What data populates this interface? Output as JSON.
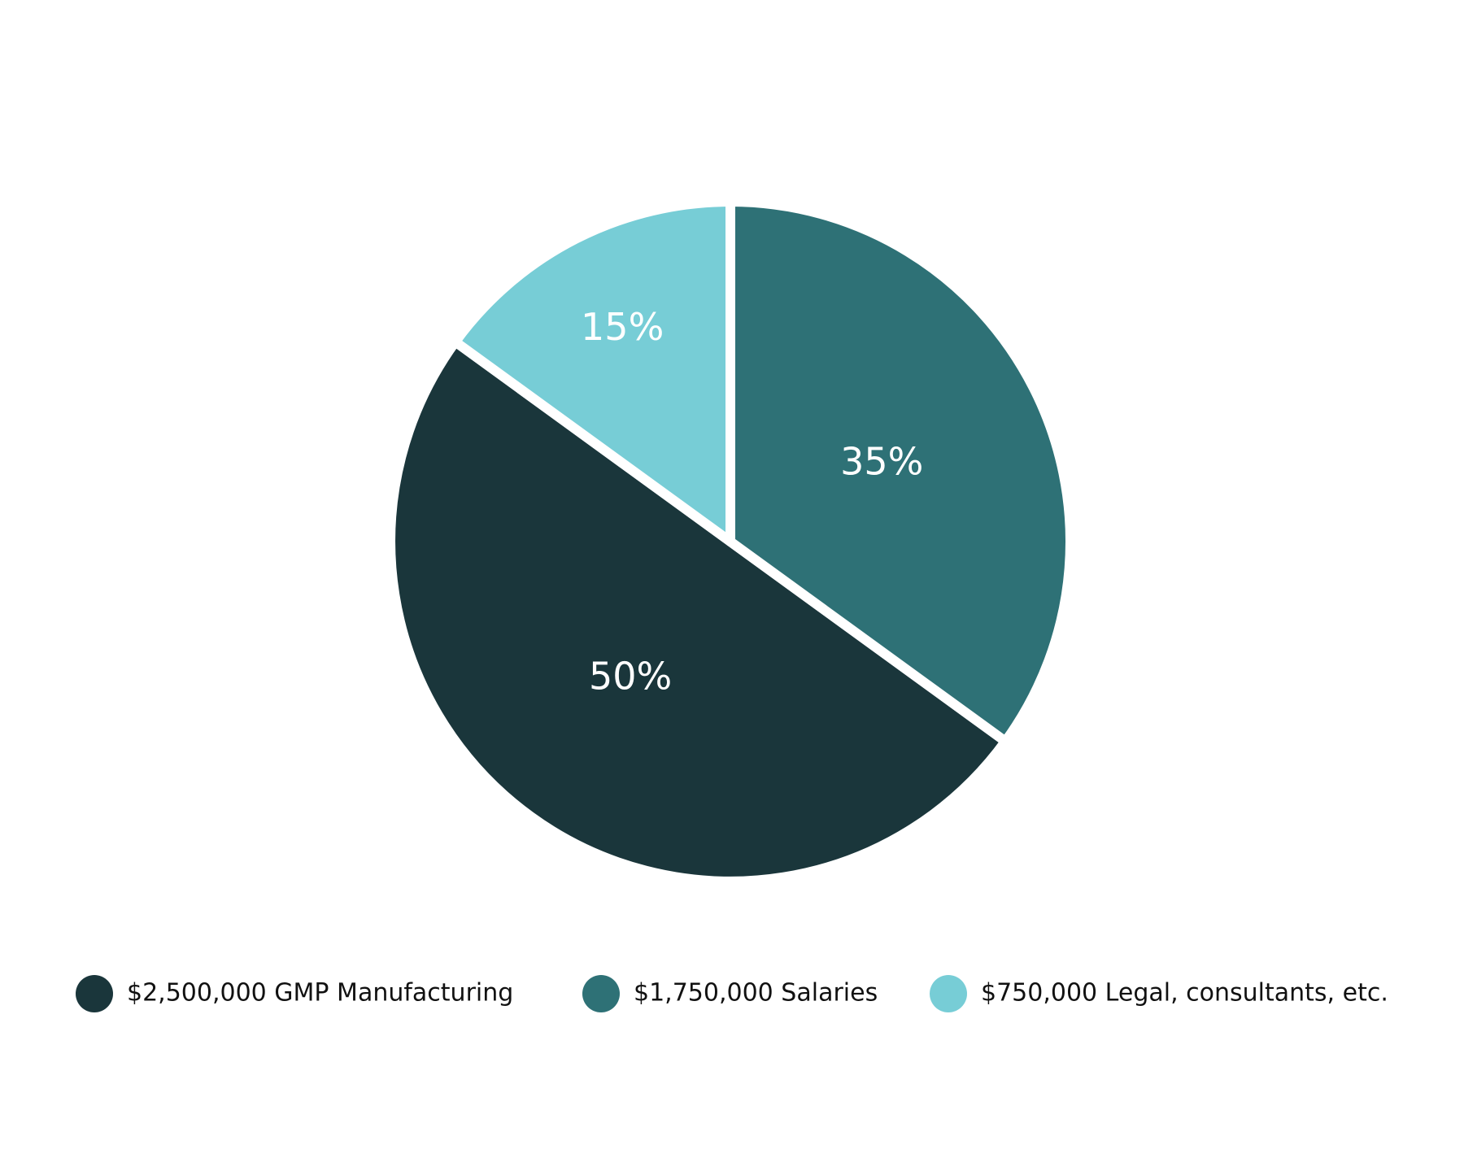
{
  "chart_data": {
    "type": "pie",
    "categories": [
      "$2,500,000 GMP Manufacturing",
      "$1,750,000 Salaries",
      "$750,000 Legal, consultants, etc."
    ],
    "values": [
      50,
      35,
      15
    ],
    "value_labels": [
      "50%",
      "35%",
      "15%"
    ],
    "colors": [
      "#1a363b",
      "#2e7176",
      "#77cdd6"
    ]
  }
}
